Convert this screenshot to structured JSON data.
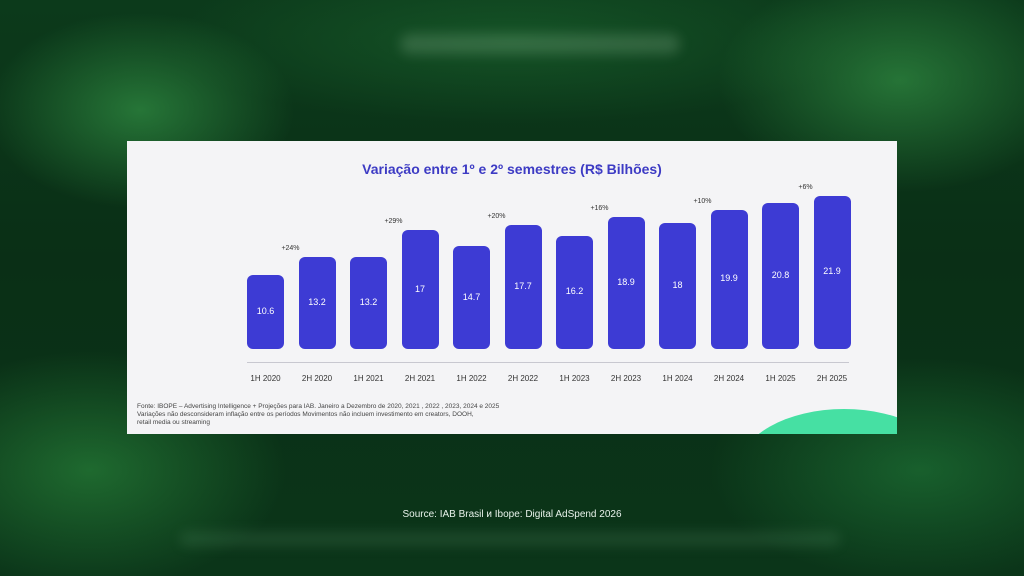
{
  "chart_data": {
    "type": "bar",
    "title": "Variação entre 1º e 2º semestres (R$ Bilhões)",
    "categories": [
      "1H 2020",
      "2H 2020",
      "1H 2021",
      "2H 2021",
      "1H 2022",
      "2H 2022",
      "1H 2023",
      "2H 2023",
      "1H 2024",
      "2H 2024",
      "1H 2025",
      "2H 2025"
    ],
    "values": [
      10.6,
      13.2,
      13.2,
      17,
      14.7,
      17.7,
      16.2,
      18.9,
      18,
      19.9,
      20.8,
      21.9
    ],
    "value_labels": [
      "10.6",
      "13.2",
      "13.2",
      "17",
      "14.7",
      "17.7",
      "16.2",
      "18.9",
      "18",
      "19.9",
      "20.8",
      "21.9"
    ],
    "annotations": [
      {
        "after_category": "2H 2020",
        "text": "+24%"
      },
      {
        "after_category": "2H 2021",
        "text": "+29%"
      },
      {
        "after_category": "2H 2022",
        "text": "+20%"
      },
      {
        "after_category": "2H 2023",
        "text": "+16%"
      },
      {
        "after_category": "2H 2024",
        "text": "+10%"
      },
      {
        "after_category": "2H 2025",
        "text": "+6%"
      }
    ],
    "ylim": [
      0,
      22
    ],
    "grid": false,
    "colors": {
      "bars": "#3d3bd4",
      "title": "#3d3bc4",
      "accent": "#46e0a3"
    }
  },
  "notes": [
    "Fonte: IBOPE  – Advertising Intelligence + Projeções para IAB. Janeiro a Dezembro de 2020, 2021 , 2022 , 2023, 2024 e 2025",
    "Variações não desconsideram inflação entre os períodos Movimentos não incluem investimento em creators, DOOH,",
    "retail media ou streaming"
  ],
  "source": "Source: IAB Brasil и Ibope: Digital AdSpend 2026"
}
